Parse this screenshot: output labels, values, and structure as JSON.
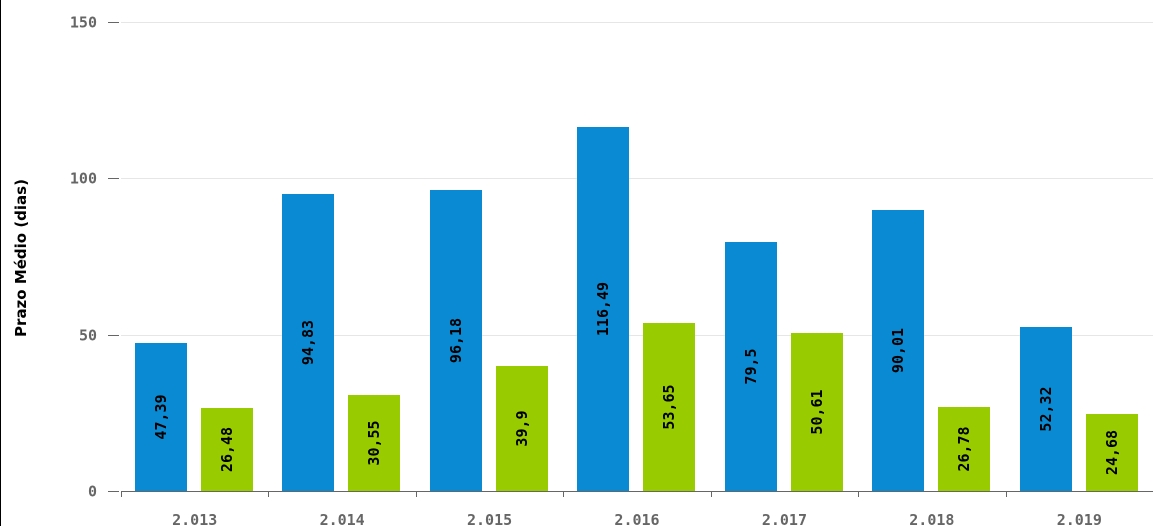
{
  "chart_data": {
    "type": "bar",
    "categories": [
      "2.013",
      "2.014",
      "2.015",
      "2.016",
      "2.017",
      "2.018",
      "2.019"
    ],
    "series": [
      {
        "color": "#0a8ad2",
        "values": [
          47.39,
          94.83,
          96.18,
          116.49,
          79.5,
          90.01,
          52.32
        ],
        "labels": [
          "47,39",
          "94,83",
          "96,18",
          "116,49",
          "79,5",
          "90,01",
          "52,32"
        ]
      },
      {
        "color": "#99cc00",
        "values": [
          26.48,
          30.55,
          39.9,
          53.65,
          50.61,
          26.78,
          24.68
        ],
        "labels": [
          "26,48",
          "30,55",
          "39,9",
          "53,65",
          "50,61",
          "26,78",
          "24,68"
        ]
      }
    ],
    "ylabel": "Prazo Médio (dias)",
    "ylim": [
      0,
      150
    ],
    "yticks": [
      0,
      50,
      100,
      150
    ],
    "grid": true,
    "legend": "none"
  }
}
